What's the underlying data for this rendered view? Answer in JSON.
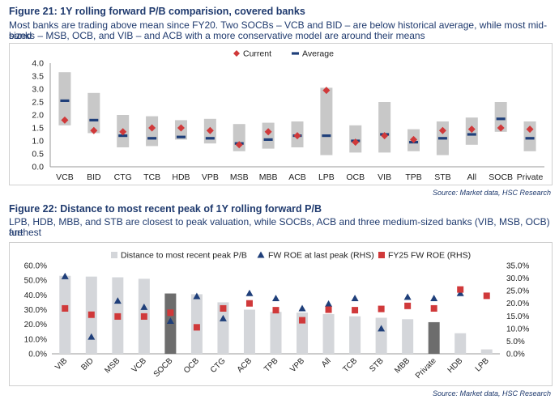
{
  "figure21": {
    "title": "Figure 21: 1Y rolling forward P/B comparision, covered banks",
    "subtitle_line1": "Most banks are trading above mean since FY20. Two SOCBs – VCB and BID – are below historical average, while most mid-sized",
    "subtitle_line2": "banks – MSB, OCB, and VIB – and ACB with a more conservative model are around their means",
    "source": "Source: Market data, HSC Research"
  },
  "figure22": {
    "title": "Figure 22: Distance to most recent peak of 1Y rolling forward P/B",
    "subtitle_line1": "LPB, HDB, MBB, and STB are closest to peak valuation, while SOCBs, ACB and three medium-sized banks (VIB, MSB, OCB) are",
    "subtitle_line2": "furthest",
    "source": "Source: Market data, HSC Research"
  },
  "colors": {
    "text": "#1f3a6e",
    "range_bar": "#c8c8c8",
    "current": "#d0393a",
    "average": "#1f3f7a",
    "distance_bar": "#d4d6da",
    "distance_bar_dark": "#6d6d6d",
    "roe_peak": "#1f3f7a",
    "roe_fy25": "#d0393a"
  },
  "chart_data": [
    {
      "type": "range-marker",
      "categories": [
        "VCB",
        "BID",
        "CTG",
        "TCB",
        "HDB",
        "VPB",
        "MSB",
        "MBB",
        "ACB",
        "LPB",
        "OCB",
        "VIB",
        "TPB",
        "STB",
        "All",
        "SOCB",
        "Private"
      ],
      "ylim": [
        0,
        4.0
      ],
      "yticks": [
        "0.0",
        "0.5",
        "1.0",
        "1.5",
        "2.0",
        "2.5",
        "3.0",
        "3.5",
        "4.0"
      ],
      "range_low": [
        1.6,
        1.3,
        0.75,
        0.8,
        1.05,
        0.9,
        0.6,
        0.7,
        0.75,
        0.45,
        0.55,
        0.55,
        0.6,
        0.45,
        0.85,
        1.35,
        0.6
      ],
      "range_high": [
        3.65,
        2.85,
        2.0,
        1.95,
        1.8,
        1.85,
        1.65,
        1.7,
        1.75,
        3.05,
        1.6,
        2.5,
        1.45,
        1.75,
        1.9,
        2.5,
        1.75
      ],
      "series": [
        {
          "name": "Current",
          "marker": "diamond",
          "values": [
            1.8,
            1.4,
            1.35,
            1.5,
            1.5,
            1.4,
            0.85,
            1.35,
            1.2,
            2.95,
            0.95,
            1.2,
            1.05,
            1.4,
            1.45,
            1.5,
            1.45
          ]
        },
        {
          "name": "Average",
          "marker": "dash",
          "values": [
            2.55,
            1.8,
            1.2,
            1.1,
            1.15,
            1.1,
            0.9,
            1.05,
            1.2,
            1.2,
            1.0,
            1.25,
            0.95,
            1.1,
            1.25,
            1.85,
            1.1
          ]
        }
      ]
    },
    {
      "type": "bar",
      "categories": [
        "VIB",
        "BID",
        "MSB",
        "VCB",
        "SOCB",
        "OCB",
        "CTG",
        "ACB",
        "TPB",
        "VPB",
        "All",
        "TCB",
        "STB",
        "MBB",
        "Private",
        "HDB",
        "LPB"
      ],
      "ylim_left": [
        0,
        0.6
      ],
      "yticks_left": [
        "0.0%",
        "10.0%",
        "20.0%",
        "30.0%",
        "40.0%",
        "50.0%",
        "60.0%"
      ],
      "ylim_right": [
        0,
        0.35
      ],
      "yticks_right": [
        "0.0%",
        "5.0%",
        "10.0%",
        "15.0%",
        "20.0%",
        "25.0%",
        "30.0%",
        "35.0%"
      ],
      "series": [
        {
          "name": "Distance to most recent peak P/B",
          "axis": "left",
          "type": "bar",
          "values": [
            0.53,
            0.525,
            0.52,
            0.51,
            0.41,
            0.405,
            0.35,
            0.3,
            0.285,
            0.28,
            0.27,
            0.255,
            0.245,
            0.235,
            0.215,
            0.14,
            0.03
          ],
          "highlight": [
            "SOCB",
            "Private"
          ]
        },
        {
          "name": "FW ROE at last peak (RHS)",
          "axis": "right",
          "type": "scatter",
          "marker": "triangle",
          "values": [
            0.307,
            0.067,
            0.21,
            0.185,
            0.13,
            0.228,
            0.14,
            0.24,
            0.22,
            0.18,
            0.198,
            0.22,
            0.1,
            0.225,
            0.22,
            0.24,
            null
          ]
        },
        {
          "name": "FY25 FW ROE (RHS)",
          "axis": "right",
          "type": "scatter",
          "marker": "square",
          "values": [
            0.18,
            0.155,
            0.148,
            0.148,
            0.163,
            0.105,
            0.18,
            0.2,
            0.173,
            0.133,
            0.175,
            0.173,
            0.178,
            0.19,
            0.18,
            0.255,
            0.23
          ]
        }
      ]
    }
  ]
}
